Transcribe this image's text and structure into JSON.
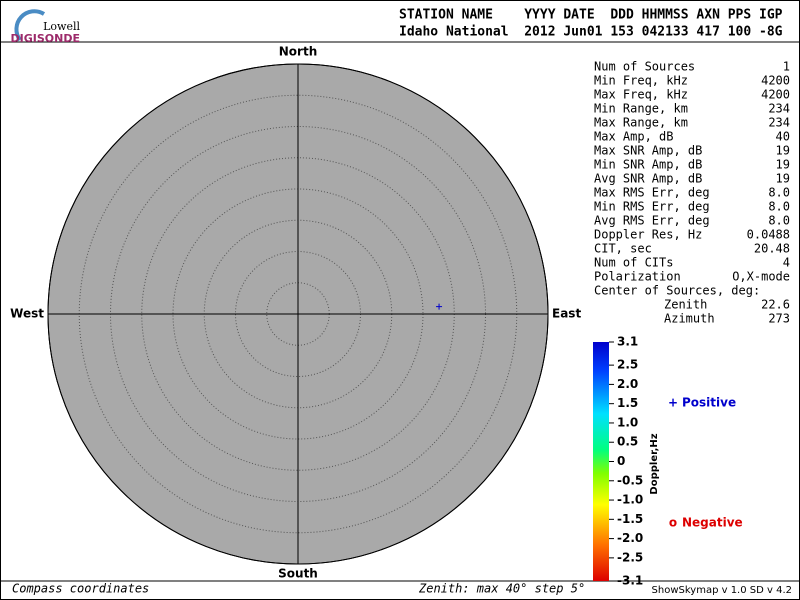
{
  "logo": {
    "line1": "Lowell",
    "line2": "DIGISONDE"
  },
  "header": {
    "labels": "STATION NAME    YYYY DATE  DDD HHMMSS AXN PPS IGP",
    "values": "Idaho National  2012 Jun01 153 042133 417 100 -8G"
  },
  "stats": [
    [
      "Num of Sources",
      "1"
    ],
    [
      "Min Freq, kHz",
      "4200"
    ],
    [
      "Max Freq, kHz",
      "4200"
    ],
    [
      "Min Range, km",
      "234"
    ],
    [
      "Max Range, km",
      "234"
    ],
    [
      "Max Amp, dB",
      "40"
    ],
    [
      "Max SNR Amp, dB",
      "19"
    ],
    [
      "Min SNR Amp, dB",
      "19"
    ],
    [
      "Avg SNR Amp, dB",
      "19"
    ],
    [
      "Max RMS Err, deg",
      "8.0"
    ],
    [
      "Min RMS Err, deg",
      "8.0"
    ],
    [
      "Avg RMS Err, deg",
      "8.0"
    ],
    [
      "Doppler Res, Hz",
      "0.0488"
    ],
    [
      "CIT, sec",
      "20.48"
    ],
    [
      "Num of CITs",
      "4"
    ],
    [
      "Polarization",
      "O,X-mode"
    ]
  ],
  "center": {
    "title": "Center of Sources, deg:",
    "rows": [
      [
        "Zenith",
        "22.6"
      ],
      [
        "Azimuth",
        "273"
      ]
    ]
  },
  "colorbar": {
    "label": "Doppler,Hz",
    "lim": [
      -3.1,
      3.1
    ],
    "ticks": [
      3.1,
      2.5,
      {
        "value": 2,
        "label": "2.0"
      },
      1.5,
      {
        "value": 1,
        "label": "1.0"
      },
      0.5,
      0,
      -0.5,
      {
        "value": -1,
        "label": "-1.0"
      },
      -1.5,
      {
        "value": -2,
        "label": "-2.0"
      },
      -2.5,
      -3.1
    ]
  },
  "footer": {
    "left": "Compass coordinates",
    "middle": "Zenith: max 40°  step 5°",
    "right": "ShowSkymap v 1.0  SD v 4.2"
  },
  "chart_data": {
    "type": "polar",
    "directions": {
      "north": "North",
      "east": "East",
      "south": "South",
      "west": "West"
    },
    "rlim": [
      0,
      40
    ],
    "rticks": [
      5,
      10,
      15,
      20,
      25,
      30,
      35,
      40
    ],
    "series": [
      {
        "name": "Positive",
        "marker": "+",
        "color": "#0000cc",
        "zenith": [
          22.6
        ],
        "azimuth": [
          87
        ]
      },
      {
        "name": "Negative",
        "marker": "o",
        "color": "#dd0000",
        "zenith": [],
        "azimuth": []
      }
    ]
  }
}
